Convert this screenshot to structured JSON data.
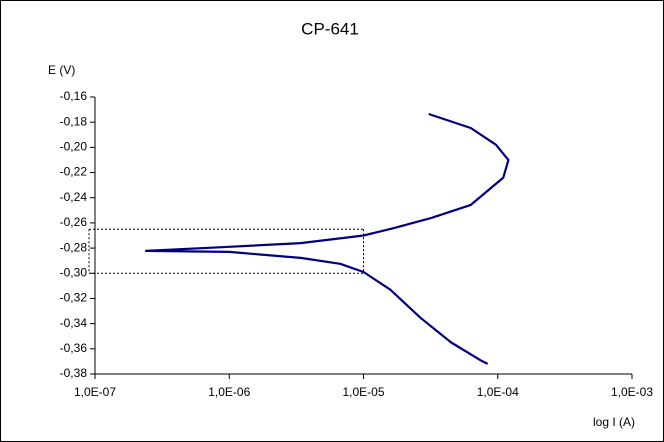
{
  "chart_data": {
    "type": "line",
    "title": "CP-641",
    "y_label": "E (V)",
    "x_label": "log I (A)",
    "x_scale": "log",
    "color": "#000080",
    "x": [
      3.06e-05,
      6.3e-05,
      9.7e-05,
      0.00012,
      0.00011,
      6.3e-05,
      3.2e-05,
      1.7e-05,
      1e-05,
      3.4e-06,
      1e-06,
      2.4e-07,
      1e-06,
      3.4e-06,
      6.7e-06,
      1e-05,
      1.58e-05,
      2.66e-05,
      4.5e-05,
      7.4e-05,
      8.4e-05
    ],
    "values": [
      -0.1735,
      -0.1846,
      -0.198,
      -0.21,
      -0.224,
      -0.2457,
      -0.256,
      -0.264,
      -0.27,
      -0.276,
      -0.279,
      -0.2822,
      -0.283,
      -0.2878,
      -0.2925,
      -0.299,
      -0.313,
      -0.3354,
      -0.355,
      -0.369,
      -0.372
    ],
    "guide_x": 1e-05,
    "guide_y": [
      -0.265,
      -0.3
    ],
    "xlim": [
      1e-07,
      0.001
    ],
    "xticks": [
      {
        "value": 1e-07,
        "label": "1,0E-07"
      },
      {
        "value": 1e-06,
        "label": "1,0E-06"
      },
      {
        "value": 1e-05,
        "label": "1,0E-05"
      },
      {
        "value": 0.0001,
        "label": "1,0E-04"
      },
      {
        "value": 0.001,
        "label": "1,0E-03"
      }
    ],
    "ylim": [
      -0.38,
      -0.16
    ],
    "yticks": [
      {
        "value": -0.38,
        "label": "-0,38"
      },
      {
        "value": -0.36,
        "label": "-0,36"
      },
      {
        "value": -0.34,
        "label": "-0,34"
      },
      {
        "value": -0.32,
        "label": "-0,32"
      },
      {
        "value": -0.3,
        "label": "-0,30"
      },
      {
        "value": -0.28,
        "label": "-0,28"
      },
      {
        "value": -0.26,
        "label": "-0,26"
      },
      {
        "value": -0.24,
        "label": "-0,24"
      },
      {
        "value": -0.22,
        "label": "-0,22"
      },
      {
        "value": -0.2,
        "label": "-0,20"
      },
      {
        "value": -0.18,
        "label": "-0,18"
      },
      {
        "value": -0.16,
        "label": "-0,16"
      }
    ]
  }
}
